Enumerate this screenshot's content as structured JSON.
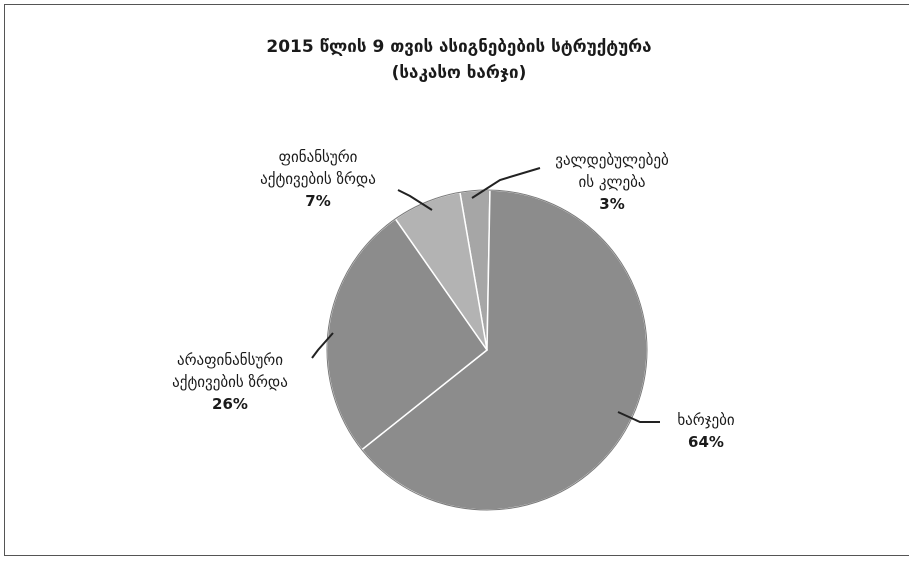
{
  "chart_data": {
    "type": "pie",
    "title": "2015 წლის 9 თვის ასიგნებების სტრუქტურა",
    "subtitle": "(საკასო ხარჯი)",
    "slices": [
      {
        "label_lines": [
          "ვალდებულებებ",
          "ის კლება"
        ],
        "pct_label": "3%",
        "value": 3,
        "color": "#a6a6a6"
      },
      {
        "label_lines": [
          "ხარჯები"
        ],
        "pct_label": "64%",
        "value": 64,
        "color": "#8c8c8c"
      },
      {
        "label_lines": [
          "არაფინანსური",
          "აქტივების ზრდა"
        ],
        "pct_label": "26%",
        "value": 26,
        "color": "#8c8c8c"
      },
      {
        "label_lines": [
          "ფინანსური",
          "აქტივების ზრდა"
        ],
        "pct_label": "7%",
        "value": 7,
        "color": "#b3b3b3"
      }
    ]
  }
}
